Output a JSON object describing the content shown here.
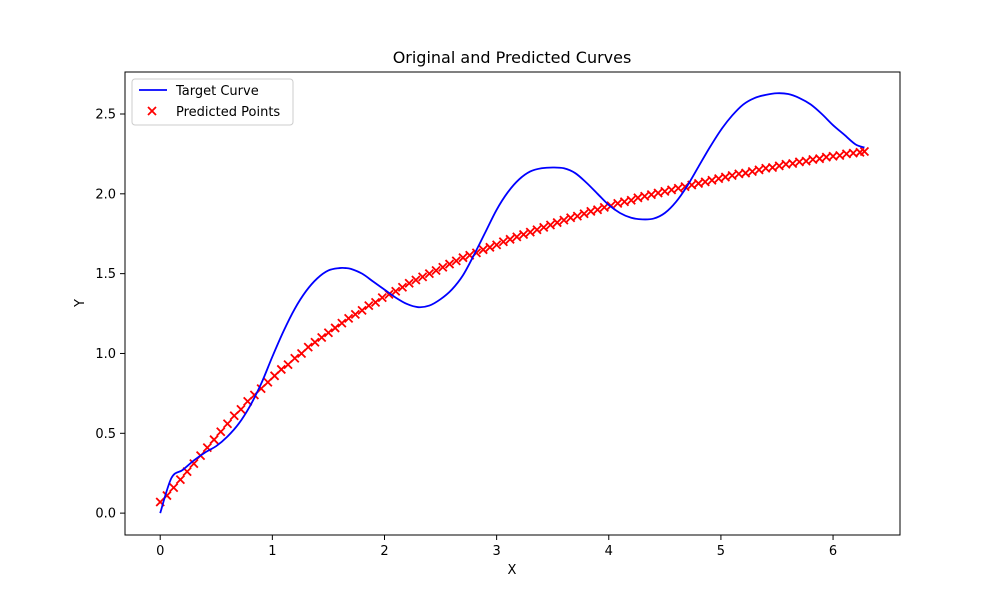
{
  "chart_data": {
    "type": "line",
    "title": "Original and Predicted Curves",
    "xlabel": "X",
    "ylabel": "Y",
    "xlim": [
      -0.314,
      6.597
    ],
    "ylim": [
      -0.137,
      2.763
    ],
    "xticks": [
      0,
      1,
      2,
      3,
      4,
      5,
      6
    ],
    "yticks": [
      0.0,
      0.5,
      1.0,
      1.5,
      2.0,
      2.5
    ],
    "xtick_labels": [
      "0",
      "1",
      "2",
      "3",
      "4",
      "5",
      "6"
    ],
    "ytick_labels": [
      "0.0",
      "0.5",
      "1.0",
      "1.5",
      "2.0",
      "2.5"
    ],
    "grid": false,
    "legend_position": "top-left",
    "series": [
      {
        "name": "Target Curve",
        "kind": "line",
        "color": "#0000ff",
        "x": [
          0,
          0.1,
          0.2,
          0.3,
          0.4,
          0.5,
          0.6,
          0.7,
          0.8,
          0.9,
          1.0,
          1.1,
          1.2,
          1.3,
          1.4,
          1.5,
          1.6,
          1.65,
          1.7,
          1.8,
          1.9,
          2.0,
          2.1,
          2.2,
          2.3,
          2.4,
          2.5,
          2.6,
          2.7,
          2.8,
          2.9,
          3.0,
          3.1,
          3.2,
          3.3,
          3.4,
          3.5,
          3.6,
          3.7,
          3.8,
          3.9,
          4.0,
          4.1,
          4.2,
          4.3,
          4.4,
          4.5,
          4.6,
          4.7,
          4.8,
          4.9,
          5.0,
          5.1,
          5.2,
          5.3,
          5.4,
          5.5,
          5.6,
          5.7,
          5.8,
          5.9,
          6.0,
          6.1,
          6.2,
          6.28
        ],
        "y": [
          0.0,
          0.22,
          0.27,
          0.33,
          0.38,
          0.42,
          0.48,
          0.56,
          0.67,
          0.81,
          0.98,
          1.14,
          1.28,
          1.39,
          1.47,
          1.52,
          1.535,
          1.535,
          1.53,
          1.5,
          1.45,
          1.4,
          1.35,
          1.31,
          1.29,
          1.3,
          1.34,
          1.4,
          1.49,
          1.62,
          1.76,
          1.9,
          2.01,
          2.09,
          2.14,
          2.16,
          2.165,
          2.16,
          2.13,
          2.07,
          2.0,
          1.93,
          1.88,
          1.85,
          1.84,
          1.845,
          1.88,
          1.95,
          2.05,
          2.17,
          2.29,
          2.4,
          2.49,
          2.56,
          2.6,
          2.62,
          2.63,
          2.625,
          2.6,
          2.56,
          2.5,
          2.43,
          2.37,
          2.31,
          2.29
        ]
      },
      {
        "name": "Predicted Points",
        "kind": "scatter",
        "marker": "x",
        "color": "#ff0000",
        "formula_note": "",
        "x": [
          0.0,
          0.06,
          0.12,
          0.18,
          0.24,
          0.3,
          0.36,
          0.42,
          0.48,
          0.54,
          0.6,
          0.66,
          0.72,
          0.78,
          0.84,
          0.9,
          0.96,
          1.02,
          1.08,
          1.14,
          1.2,
          1.26,
          1.32,
          1.38,
          1.44,
          1.5,
          1.56,
          1.62,
          1.68,
          1.74,
          1.8,
          1.86,
          1.92,
          1.98,
          2.04,
          2.1,
          2.16,
          2.22,
          2.28,
          2.34,
          2.4,
          2.46,
          2.52,
          2.58,
          2.64,
          2.7,
          2.76,
          2.82,
          2.88,
          2.94,
          3.0,
          3.06,
          3.12,
          3.18,
          3.24,
          3.3,
          3.36,
          3.42,
          3.48,
          3.54,
          3.6,
          3.66,
          3.72,
          3.78,
          3.84,
          3.9,
          3.96,
          4.02,
          4.08,
          4.14,
          4.2,
          4.26,
          4.32,
          4.38,
          4.44,
          4.5,
          4.56,
          4.62,
          4.68,
          4.74,
          4.8,
          4.86,
          4.92,
          4.98,
          5.04,
          5.1,
          5.16,
          5.22,
          5.28,
          5.34,
          5.4,
          5.46,
          5.52,
          5.58,
          5.64,
          5.7,
          5.76,
          5.82,
          5.88,
          5.94,
          6.0,
          6.06,
          6.12,
          6.18,
          6.24,
          6.28
        ],
        "y": [
          0.07,
          0.11,
          0.16,
          0.21,
          0.26,
          0.31,
          0.36,
          0.41,
          0.46,
          0.51,
          0.56,
          0.61,
          0.65,
          0.7,
          0.74,
          0.78,
          0.82,
          0.86,
          0.9,
          0.93,
          0.97,
          1.0,
          1.04,
          1.07,
          1.1,
          1.13,
          1.16,
          1.19,
          1.22,
          1.245,
          1.27,
          1.3,
          1.32,
          1.35,
          1.37,
          1.39,
          1.415,
          1.44,
          1.46,
          1.48,
          1.5,
          1.52,
          1.54,
          1.56,
          1.58,
          1.6,
          1.615,
          1.63,
          1.65,
          1.665,
          1.68,
          1.7,
          1.715,
          1.73,
          1.745,
          1.76,
          1.775,
          1.79,
          1.805,
          1.82,
          1.835,
          1.85,
          1.86,
          1.875,
          1.89,
          1.9,
          1.915,
          1.925,
          1.94,
          1.95,
          1.96,
          1.975,
          1.985,
          1.995,
          2.005,
          2.015,
          2.025,
          2.035,
          2.045,
          2.055,
          2.065,
          2.075,
          2.085,
          2.095,
          2.105,
          2.115,
          2.125,
          2.13,
          2.14,
          2.15,
          2.16,
          2.165,
          2.175,
          2.185,
          2.19,
          2.2,
          2.205,
          2.215,
          2.22,
          2.23,
          2.235,
          2.24,
          2.25,
          2.255,
          2.26,
          2.265
        ]
      }
    ]
  }
}
